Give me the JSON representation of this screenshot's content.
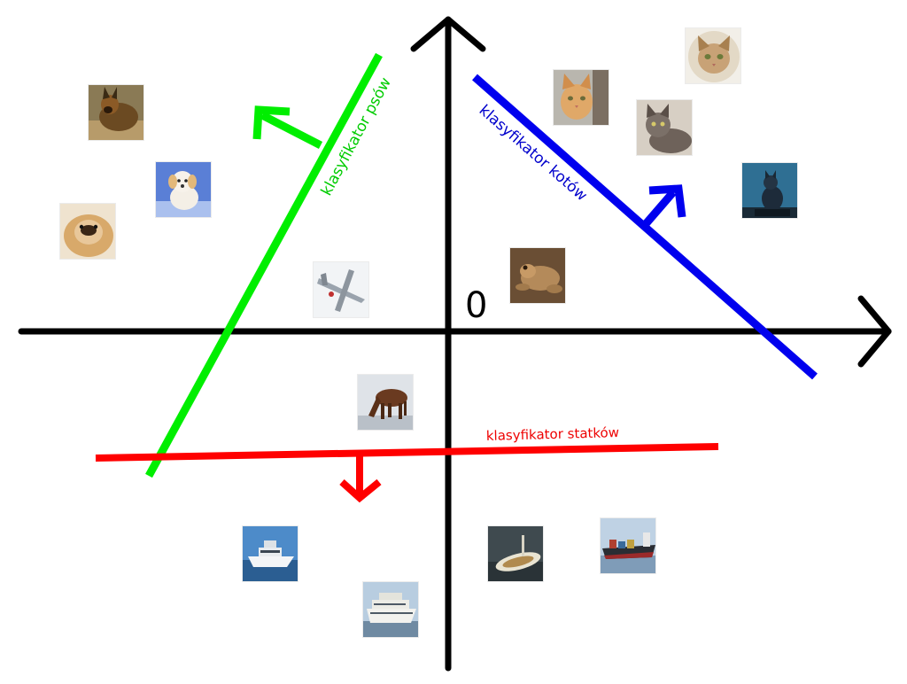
{
  "diagram": {
    "origin_label": "0",
    "classifiers": [
      {
        "id": "dogs",
        "label": "klasyfikator psów",
        "color": "#00ee00"
      },
      {
        "id": "cats",
        "label": "klasyfikator kotów",
        "color": "#0000ee"
      },
      {
        "id": "ships",
        "label": "klasyfikator statków",
        "color": "#ff0000"
      }
    ],
    "images": [
      {
        "name": "dog-shepherd-thumbnail",
        "subject": "dog",
        "icon": "dog-icon"
      },
      {
        "name": "dog-white-puppy-thumbnail",
        "subject": "dog",
        "icon": "dog-icon"
      },
      {
        "name": "dog-pekingese-thumbnail",
        "subject": "dog",
        "icon": "dog-icon"
      },
      {
        "name": "airplane-thumbnail",
        "subject": "airplane",
        "icon": "airplane-icon"
      },
      {
        "name": "cat-ginger-thumbnail",
        "subject": "cat",
        "icon": "cat-icon"
      },
      {
        "name": "cat-tabby-thumbnail",
        "subject": "cat",
        "icon": "cat-icon"
      },
      {
        "name": "cat-portrait-thumbnail",
        "subject": "cat",
        "icon": "cat-icon"
      },
      {
        "name": "cat-statue-thumbnail",
        "subject": "cat",
        "icon": "cat-icon"
      },
      {
        "name": "frog-thumbnail",
        "subject": "frog",
        "icon": "frog-icon"
      },
      {
        "name": "horse-thumbnail",
        "subject": "horse",
        "icon": "horse-icon"
      },
      {
        "name": "ship-yacht-thumbnail",
        "subject": "ship",
        "icon": "ship-icon"
      },
      {
        "name": "ship-cruise-thumbnail",
        "subject": "ship",
        "icon": "ship-icon"
      },
      {
        "name": "ship-boat-thumbnail",
        "subject": "ship",
        "icon": "ship-icon"
      },
      {
        "name": "ship-cargo-thumbnail",
        "subject": "ship",
        "icon": "ship-icon"
      }
    ]
  }
}
